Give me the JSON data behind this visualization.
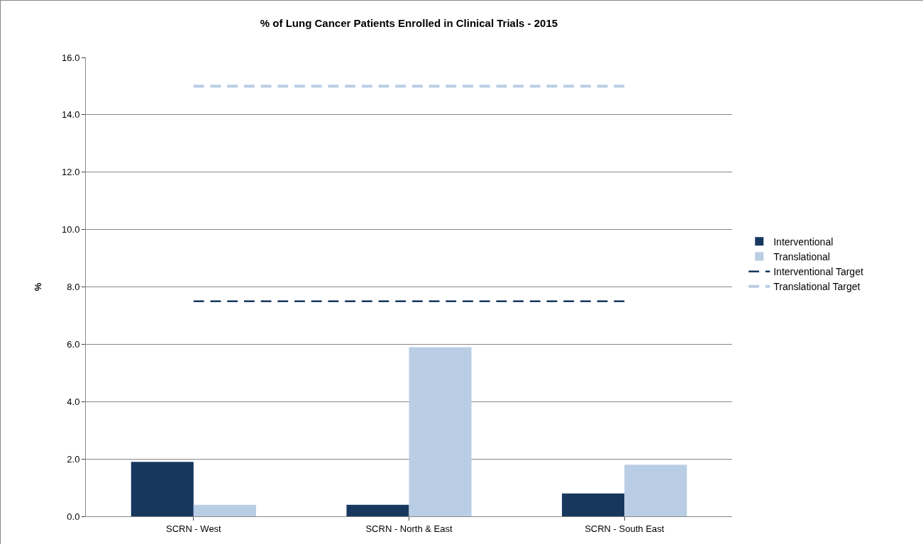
{
  "chart_data": {
    "type": "bar",
    "title": "% of Lung Cancer Patients Enrolled in Clinical Trials - 2015",
    "ylabel": "%",
    "categories": [
      "SCRN - West",
      "SCRN - North & East",
      "SCRN - South East"
    ],
    "series": [
      {
        "name": "Interventional",
        "color": "#17375e",
        "values": [
          1.9,
          0.4,
          0.8
        ]
      },
      {
        "name": "Translational",
        "color": "#b9cde5",
        "values": [
          0.4,
          5.9,
          1.8
        ]
      },
      {
        "name": "Interventional Target",
        "type": "line",
        "line_style": "dashed",
        "color": "#17375e",
        "values": [
          7.5,
          7.5,
          7.5
        ]
      },
      {
        "name": "Translational Target",
        "type": "line",
        "line_style": "dashed",
        "color": "#b9cde5",
        "values": [
          15,
          15,
          15
        ]
      }
    ],
    "ylim": [
      0,
      16
    ],
    "yticks": [
      {
        "value": 0,
        "label": "0.0"
      },
      {
        "value": 2,
        "label": "2.0"
      },
      {
        "value": 4,
        "label": "4.0"
      },
      {
        "value": 6,
        "label": "6.0"
      },
      {
        "value": 8,
        "label": "8.0"
      },
      {
        "value": 10,
        "label": "10.0"
      },
      {
        "value": 12,
        "label": "12.0"
      },
      {
        "value": 14,
        "label": "14.0"
      },
      {
        "value": 16,
        "label": "16.0"
      }
    ],
    "grid": "y",
    "legend": "right",
    "marker": "none"
  }
}
